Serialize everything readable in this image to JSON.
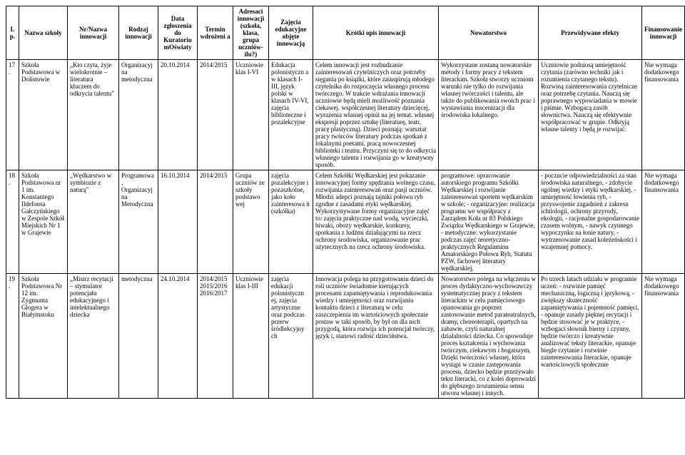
{
  "headers": {
    "lp": "L p.",
    "school": "Nazwa szkoły",
    "nrname": "Nr/Nazwa innowacji",
    "type": "Rodzaj innowacji",
    "date": "Data zgłoszenia do Kuratoriu mOświaty",
    "term": "Termin wdrożeni a",
    "addr": "Adresaci innowacji (szkoła, klasa, grupa uczniów- ilu?)",
    "cls": "Zajęcia edukacyjne objęte innowacją",
    "desc": "Krótki opis innowacji",
    "nov": "Nowatorstwo",
    "eff": "Przewidywane efekty",
    "fin": "Finansowanie innowacji"
  },
  "rows": [
    {
      "lp": "17.",
      "school": "Szkoła Podstawowa w Dolistowie",
      "nrname": "„Kto czyta, żyje wielokrotnie – literatura kluczem do odkrycia talentu\"",
      "type": "Organizacyjna metodyczna",
      "date": "20.10.2014",
      "term": "2014/2015",
      "addr": "Uczniowie klas I-VI",
      "cls": "Edukacja polonistyczn a w klasach I-III, język polski w klasach IV-VI, zajęcia biblioteczne i pozalekcyjne",
      "desc": "Celem innowacji jest rozbudzanie zainteresowań czytelniczych oraz potrzeby sięgania po książki, które zainspirują młodego czytelnika do rozpoczęcia własnego procesu twórczego. W trakcie wdrażania innowacji uczniowie będą mieli możliwość poznania ciekawej. współczesnej literatury dziecięcej, wyrażenia własnej opinii na jej temat. własnej ekspresji poprzez sztukę (literaturę, teatr, pracę plastyczną). Dzieci poznają: warsztat pracy twórców literatury podczas spotkań z lokalnymi poetami, pracą nowoczesnej biblioteki i teatru. Przyczyni się to do odkrycia własnego talentu i rozwijania go w kreatywny sposób.",
      "nov": "Wykorzystane zostaną nowatorskie metody i formy pracy z tekstem literackim. Szkoła stworzy uczniom warunki nie tylko do rozwijania własnej twórczości i talentu, ale także do publikowania swoich prac i wystawiania inscenizacji dla środowiska lokalnego.",
      "eff": "Uczniowie podniosą umiejętność czytania (zarówno techniki jak i rozumienia czytanego tekstu). Rozwiną zainteresowania czytelnicze oraz potrzebę czytania. Nauczą się poprawnego wypowiadania w mowie i piśmie. Wzbogacą zasób słownictwa. Nauczą się efektywnie współpracować w grupie. Odkryją własne talenty i będą je rozwijać.",
      "fin": "Nie wymaga dodatkowego finansowania"
    },
    {
      "lp": "18.",
      "school": "Szkoła Podstawowa nr 1 im. Konstantego Ildefonsa Gałczyńskiego w Zespole Szkół Miejskich Nr 1 w Grajewie",
      "nrname": "„Wędkarstwo w symbiozie z naturą\"",
      "type": "Programowa, Organizacyjna Metodyczna",
      "date": "16.10.2014",
      "term": "2014/2015",
      "addr": "Grupa uczniów ze szkoły podstawo wej",
      "cls": "zajęcia pozalekcyjne i pozaszkolne, jako koło zainteresowa ń (szkółka)",
      "desc": "Celem Szkółki Wędkarskiej jest pokazanie innowacyjnej formy spędzania wolnego czasu, rozwijania zainteresowań oraz pasji uczniów. Młodzi adepci poznają tajniki połowu ryb zgodne z zasadami etyki wędkarskiej. Wykorzystywane formy organizacyjne zajęć to: zajęcia praktyczne nad wodą, wycieczki, biwaki, obozy wędkarskie, konkursy, spotkania z ludźmi działającymi na rzecz ochrony środowiska, organizowanie prac użytecznych na rzecz ochrony środowiska.",
      "nov": "programowe: opracowanie autorskiego programu Szkółki Wędkarskiej i rozwijanie zainteresowań sportem wędkarskim w szkole; - organizacyjne: realizacja programu we współpracy z Zarządem Koła nr 83 Polskiego Związku Wędkarskiego w Grajewie, - metodyczne: wykorzystanie podczas zajęć teoretyczno-praktycznych Regulaminu Amatorskiego Połowu Ryb, Statutu PZW, fachowej literatury wędkarskiej.",
      "eff": "- poczucie odpowiedzialności za stan środowiska naturalnego, - zdobycie ogólnej wiedzy i etyki wędkarskiej, - umiejętność łowienia ryb, - przyswojenie zagadnień z zakresu ichtiologii, ochrony przyrody, ekologii, - racjonalne gospodarowanie czasem wolnym, - nawyk czynnego wypoczynku na łonie natury, - wytrzenowanie zasad koleżeńskości i wzajemnej pomocy.",
      "fin": "Nie wymaga dodatkowego finansowania"
    },
    {
      "lp": "19.",
      "school": "Szkoła Podstawowa Nr 12 im. Zygmunta Glogera w Białymstoku",
      "nrname": "„Mistrz recytacji – stymulator potencjału edukacyjnego i intelektualnego dziecka",
      "type": "metodyczna",
      "date": "24.10.2014",
      "term": "2014/2015 2015/2016 2016/2017",
      "addr": "Uczniowie klas I-III",
      "cls": "zajęcia edukacji polonistyczn ej, zajęcia artystyczne oraz podczas przerw śródlekcyjny ch",
      "desc": "Innowacja polega na przygotowaniu dzieci do roli uczniów świadomie kierujących procesami zapamiętywania i reprodukowania wiedzy i umiejętności oraz rozwijaniu kontaktu dzieci z literaturą w celu zaszczepienia im wartościowych społecznie postaw w taki sposób, by był on dla nich przygodą, która rozwija ich potencjał twórczy, język i, stanowi radość dzieciństwa.",
      "nov": "Nowatorstwo polega na włączeniu w proces dydaktyczno-wychowawczy systematycznej pracy z tekstem literackim w celu pamięciowego opanowania go poprzez zastosowanie metod parateatralnych, dramy, choreoterapii, opartych na zabawie, czyli naturalnej działalności dziecka. Co spowoduje proces kształcenia i wychowania twórczym, ciekawym i bogatszym, Dzięki twórczości własnej, która wystąpi w czasie zastępowania procesu, dziecko będzie przeżywało tekst literacki, co z kolei doprowadzi do głębszego zrozumienia sensu utworu własnej i innych.",
      "eff": "Po trzech latach udziału w programie uczeń: - rozwinie pamięć mechaniczną, logiczną i językową, - zwiększy skuteczność zapamiętywania i pojemność pamięci, - opanuje zasady pięknej recytacji i będzie stosować je w praktyce, - wzbogaci słownik bierny i czynny, będzie twórczo i kreatywnie analizować teksty literackie, opanuje biegle czytanie i rozwinie zainteresowania literackie, opanuje wartościowych społecznie",
      "fin": "Nie wymaga dodatkowego finansowania"
    }
  ]
}
